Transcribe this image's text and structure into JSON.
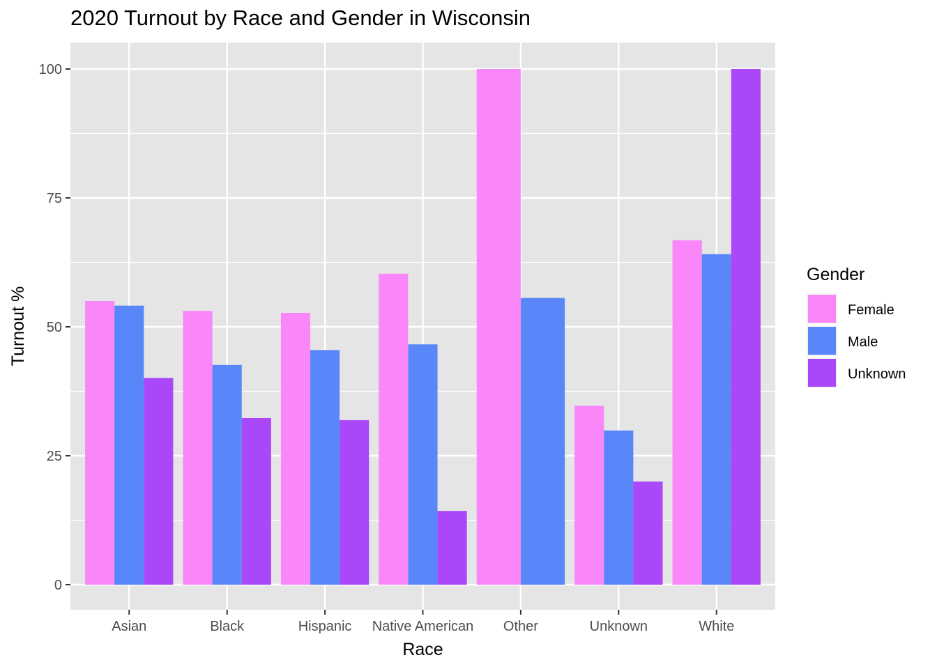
{
  "chart_data": {
    "type": "bar",
    "title": "2020 Turnout by Race and Gender in Wisconsin",
    "xlabel": "Race",
    "ylabel": "Turnout %",
    "categories": [
      "Asian",
      "Black",
      "Hispanic",
      "Native American",
      "Other",
      "Unknown",
      "White"
    ],
    "series": [
      {
        "name": "Female",
        "color": "#F987FA",
        "values": [
          55.0,
          53.1,
          52.7,
          60.3,
          100.0,
          34.7,
          66.8
        ]
      },
      {
        "name": "Male",
        "color": "#5987F9",
        "values": [
          54.1,
          42.6,
          45.5,
          46.6,
          55.6,
          29.9,
          64.1
        ]
      },
      {
        "name": "Unknown",
        "color": "#AA48F9",
        "values": [
          40.1,
          32.3,
          31.9,
          14.3,
          null,
          20.0,
          100.0
        ]
      }
    ],
    "ylim": [
      -5,
      105
    ],
    "yticks": [
      0,
      25,
      50,
      75,
      100
    ],
    "grid": true,
    "panel_background": "#E5E5E5",
    "legend": {
      "title": "Gender",
      "position": "right"
    }
  }
}
